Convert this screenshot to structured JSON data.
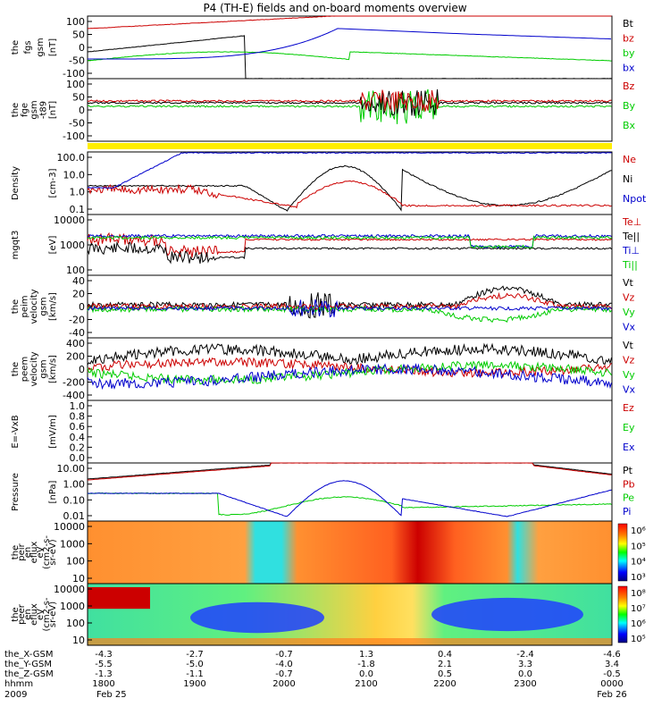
{
  "title": "P4 (TH-E) fields and on-board moments overview",
  "panels": [
    {
      "id": "fgs",
      "ylabel": [
        "the",
        "fgs",
        "gsm",
        "[nT]"
      ],
      "ticks": [
        "100",
        "50",
        "0",
        "-50",
        "-100"
      ],
      "legend": [
        {
          "t": "Bt",
          "c": "#000000"
        },
        {
          "t": "bz",
          "c": "#cc0000"
        },
        {
          "t": "by",
          "c": "#00cc00"
        },
        {
          "t": "bx",
          "c": "#0000cc"
        }
      ]
    },
    {
      "id": "fge",
      "ylabel": [
        "the",
        "fge",
        "gsm",
        "-t89",
        "[nT]"
      ],
      "ticks": [
        "100",
        "50",
        "0",
        "-50",
        "-100"
      ],
      "legend": [
        {
          "t": "Bz",
          "c": "#cc0000"
        },
        {
          "t": "By",
          "c": "#00cc00"
        },
        {
          "t": "Bx",
          "c": "#00cc00"
        }
      ]
    },
    {
      "id": "density",
      "ylabel": [
        "Density",
        "[cm-3]"
      ],
      "ticks": [
        "100.0",
        "10.0",
        "1.0",
        "0.1"
      ],
      "legend": [
        {
          "t": "Ne",
          "c": "#cc0000"
        },
        {
          "t": "Ni",
          "c": "#000000"
        },
        {
          "t": "Npot",
          "c": "#0000cc"
        }
      ]
    },
    {
      "id": "temp",
      "ylabel": [
        "mgqt3",
        "[eV]"
      ],
      "ticks": [
        "10000",
        "1000",
        "100"
      ],
      "legend": [
        {
          "t": "Te⊥",
          "c": "#cc0000"
        },
        {
          "t": "Te||",
          "c": "#000000"
        },
        {
          "t": "Ti⊥",
          "c": "#0000cc"
        },
        {
          "t": "Ti||",
          "c": "#00cc00"
        }
      ]
    },
    {
      "id": "peim",
      "ylabel": [
        "the",
        "peim",
        "velocity",
        "gsm",
        "[km/s]"
      ],
      "ticks": [
        "40",
        "20",
        "0",
        "-20",
        "-40"
      ],
      "legend": [
        {
          "t": "Vt",
          "c": "#000000"
        },
        {
          "t": "Vz",
          "c": "#cc0000"
        },
        {
          "t": "Vy",
          "c": "#00cc00"
        },
        {
          "t": "Vx",
          "c": "#0000cc"
        }
      ]
    },
    {
      "id": "peem",
      "ylabel": [
        "the",
        "peem",
        "velocity",
        "gsm",
        "[km/s]"
      ],
      "ticks": [
        "400",
        "200",
        "0",
        "-200",
        "-400"
      ],
      "legend": [
        {
          "t": "Vt",
          "c": "#000000"
        },
        {
          "t": "Vz",
          "c": "#cc0000"
        },
        {
          "t": "Vy",
          "c": "#00cc00"
        },
        {
          "t": "Vx",
          "c": "#0000cc"
        }
      ]
    },
    {
      "id": "efield",
      "ylabel": [
        "E=-VxB",
        "[mV/m]"
      ],
      "ticks": [
        "1.0",
        "0.8",
        "0.6",
        "0.4",
        "0.2",
        "0.0"
      ],
      "legend": [
        {
          "t": "Ez",
          "c": "#cc0000"
        },
        {
          "t": "Ey",
          "c": "#00cc00"
        },
        {
          "t": "Ex",
          "c": "#0000cc"
        }
      ]
    },
    {
      "id": "pressure",
      "ylabel": [
        "Pressure",
        "[nPa]"
      ],
      "ticks": [
        "10.00",
        "1.00",
        "0.10",
        "0.01"
      ],
      "legend": [
        {
          "t": "Pt",
          "c": "#000000"
        },
        {
          "t": "Pb",
          "c": "#cc0000"
        },
        {
          "t": "Pe",
          "c": "#00cc00"
        },
        {
          "t": "Pi",
          "c": "#0000cc"
        }
      ]
    },
    {
      "id": "peir",
      "ylabel": [
        "the",
        "peir",
        "en",
        "eflux",
        "eV",
        "(cm2-s-",
        "sr-eV)"
      ],
      "ticks": [
        "10000",
        "1000",
        "100",
        "10"
      ],
      "colorbar": [
        "10⁶",
        "10⁵",
        "10⁴",
        "10³"
      ]
    },
    {
      "id": "peer",
      "ylabel": [
        "the",
        "peer",
        "en",
        "eflux",
        "eV",
        "(cm2-s-",
        "sr-eV)"
      ],
      "ticks": [
        "10000",
        "1000",
        "100",
        "10"
      ],
      "colorbar": [
        "10⁸",
        "10⁷",
        "10⁶",
        "10⁵"
      ]
    }
  ],
  "xaxis": {
    "rows": [
      {
        "label": "the_X-GSM",
        "values": [
          "-4.3",
          "-2.7",
          "-0.7",
          "1.3",
          "0.4",
          "-2.4",
          "-4.6"
        ]
      },
      {
        "label": "the_Y-GSM",
        "values": [
          "-5.5",
          "-5.0",
          "-4.0",
          "-1.8",
          "2.1",
          "3.3",
          "3.4"
        ]
      },
      {
        "label": "the_Z-GSM",
        "values": [
          "-1.3",
          "-1.1",
          "-0.7",
          "0.0",
          "0.5",
          "0.0",
          "-0.5"
        ]
      },
      {
        "label": "hhmm",
        "values": [
          "1800",
          "1900",
          "2000",
          "2100",
          "2200",
          "2300",
          "0000"
        ]
      }
    ],
    "year": "2009",
    "date_left": "Feb 25",
    "date_right": "Feb 26"
  },
  "chart_data": {
    "type": "line",
    "title": "P4 (TH-E) fields and on-board moments overview",
    "x": [
      "1800",
      "1900",
      "2000",
      "2100",
      "2200",
      "2300",
      "0000"
    ],
    "xlabel": "hhmm",
    "series": [
      {
        "name": "Ni",
        "values": [
          5,
          5,
          0.12,
          90,
          10,
          0.3,
          1
        ]
      },
      {
        "name": "Ne",
        "values": [
          4,
          0.3,
          0.2,
          4,
          1,
          0.2,
          0.2
        ]
      },
      {
        "name": "Pi",
        "values": [
          0.2,
          0.2,
          0.007,
          2,
          0.3,
          0.007,
          0.1
        ]
      }
    ]
  }
}
